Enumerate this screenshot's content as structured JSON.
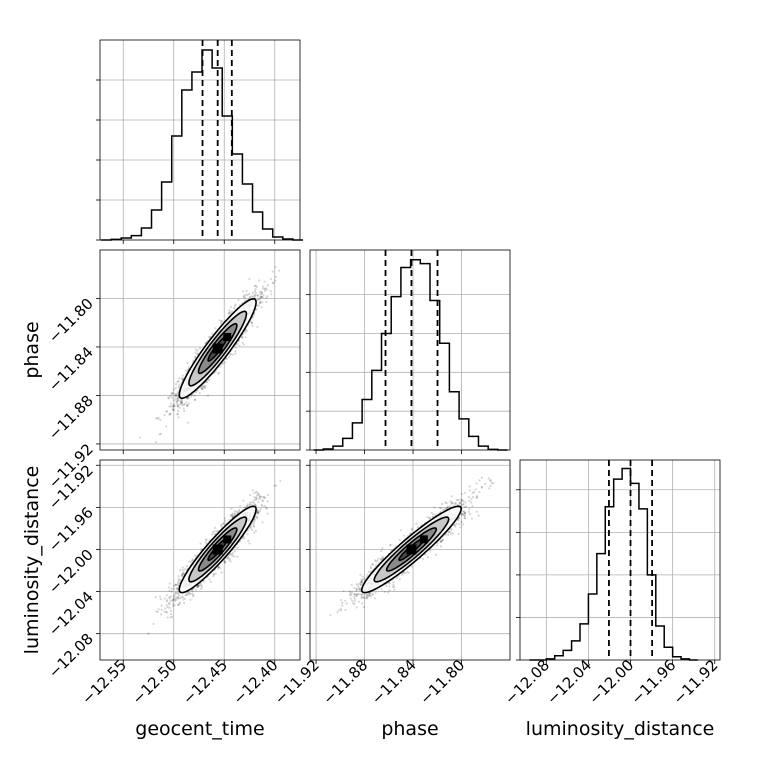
{
  "chart_data": {
    "type": "corner",
    "parameters": [
      "geocent_time",
      "phase",
      "luminosity_distance"
    ],
    "grid": true,
    "axes": {
      "geocent_time": {
        "label": "geocent_time",
        "range": [
          -12.573,
          -12.375
        ],
        "ticks": [
          -12.55,
          -12.5,
          -12.45,
          -12.4
        ],
        "tick_labels": [
          "−12.55",
          "−12.50",
          "−12.45",
          "−12.40"
        ]
      },
      "phase": {
        "label": "phase",
        "range": [
          -11.925,
          -11.76
        ],
        "ticks": [
          -11.92,
          -11.88,
          -11.84,
          -11.8
        ],
        "tick_labels": [
          "−11.92",
          "−11.88",
          "−11.84",
          "−11.80"
        ]
      },
      "luminosity_distance": {
        "label": "luminosity_distance",
        "range": [
          -12.105,
          -11.915
        ],
        "ticks": [
          -12.08,
          -12.04,
          -12.0,
          -11.96,
          -11.92
        ],
        "tick_labels": [
          "−12.08",
          "−12.04",
          "−12.00",
          "−11.96",
          "−11.92"
        ]
      }
    },
    "histograms": [
      {
        "param": "geocent_time",
        "bin_edges": [
          -12.572,
          -12.562,
          -12.552,
          -12.542,
          -12.532,
          -12.522,
          -12.512,
          -12.502,
          -12.492,
          -12.482,
          -12.472,
          -12.462,
          -12.452,
          -12.442,
          -12.432,
          -12.422,
          -12.412,
          -12.402,
          -12.392,
          -12.382,
          -12.372
        ],
        "counts": [
          0.0,
          0.3,
          1.0,
          2.2,
          6.0,
          15.0,
          29.0,
          52.0,
          75.0,
          84.0,
          95.0,
          86.0,
          62.0,
          43.0,
          28.0,
          14.0,
          5.5,
          1.5,
          0.5,
          0.0
        ],
        "quantiles": [
          -12.4715,
          -12.4565,
          -12.4425
        ],
        "ymax": 100
      },
      {
        "param": "phase",
        "bin_edges": [
          -11.922,
          -11.914,
          -11.906,
          -11.898,
          -11.89,
          -11.882,
          -11.874,
          -11.866,
          -11.858,
          -11.85,
          -11.842,
          -11.834,
          -11.826,
          -11.818,
          -11.81,
          -11.802,
          -11.794,
          -11.786,
          -11.778,
          -11.77,
          -11.762
        ],
        "counts": [
          0.0,
          0.5,
          2.0,
          6.0,
          14.0,
          26.0,
          41.0,
          60.0,
          79.0,
          94.0,
          98.0,
          96.0,
          77.0,
          55.0,
          30.0,
          16.0,
          7.0,
          2.0,
          0.3,
          0.0
        ],
        "quantiles": [
          -11.8627,
          -11.8413,
          -11.8198
        ],
        "ymax": 103
      },
      {
        "param": "luminosity_distance",
        "bin_edges": [
          -12.096,
          -12.088,
          -12.08,
          -12.072,
          -12.064,
          -12.056,
          -12.048,
          -12.04,
          -12.032,
          -12.024,
          -12.016,
          -12.008,
          -12.0,
          -11.992,
          -11.984,
          -11.976,
          -11.968,
          -11.96,
          -11.952,
          -11.944,
          -11.936
        ],
        "counts": [
          0.0,
          0.0,
          0.5,
          2.0,
          4.5,
          9.0,
          17.0,
          31.0,
          50.0,
          72.0,
          85.0,
          90.0,
          83.0,
          71.0,
          40.0,
          16.0,
          6.0,
          1.5,
          0.5,
          0.0
        ],
        "quantiles": [
          -12.0205,
          -12.0,
          -11.9795
        ],
        "ymax": 94
      }
    ],
    "pairs": [
      {
        "x": "geocent_time",
        "y": "phase",
        "center": [
          -12.4565,
          -11.8413
        ],
        "sd": [
          0.019,
          0.0205
        ],
        "corr": 0.93,
        "n_samples": 2500
      },
      {
        "x": "geocent_time",
        "y": "luminosity_distance",
        "center": [
          -12.4565,
          -12.0
        ],
        "sd": [
          0.019,
          0.0205
        ],
        "corr": 0.93,
        "n_samples": 2500
      },
      {
        "x": "phase",
        "y": "luminosity_distance",
        "center": [
          -11.8413,
          -12.0
        ],
        "sd": [
          0.0205,
          0.0205
        ],
        "corr": 0.94,
        "n_samples": 2500
      }
    ],
    "contour_levels": [
      0.118,
      0.393,
      0.675,
      0.865
    ]
  }
}
